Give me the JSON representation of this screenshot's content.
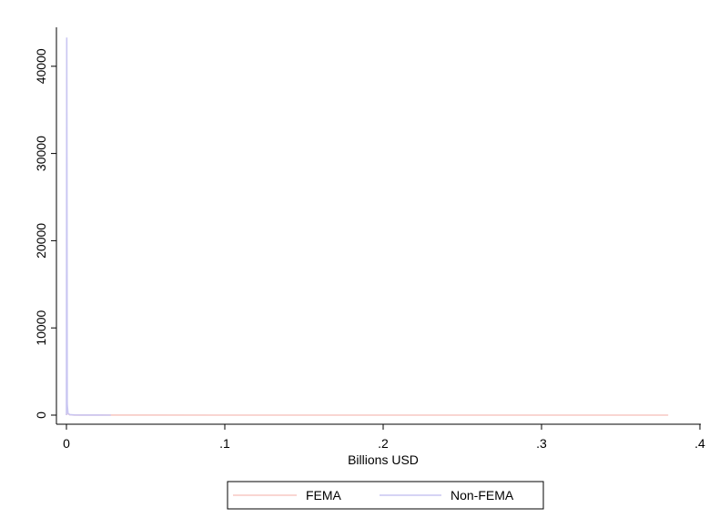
{
  "chart_data": {
    "type": "line",
    "title": "",
    "xlabel": "Billions USD",
    "ylabel": "",
    "xlim": [
      0,
      0.4
    ],
    "ylim": [
      0,
      43500
    ],
    "xticks": [
      0,
      0.1,
      0.2,
      0.3,
      0.4
    ],
    "xtick_labels": [
      "0",
      ".1",
      ".2",
      ".3",
      ".4"
    ],
    "yticks": [
      0,
      10000,
      20000,
      30000,
      40000
    ],
    "ytick_labels": [
      "0",
      "10000",
      "20000",
      "30000",
      "40000"
    ],
    "grid": false,
    "legend_position": "bottom",
    "series": [
      {
        "name": "FEMA",
        "color": "#f7c9c4",
        "x": [
          0,
          0.0005,
          0.001,
          0.002,
          0.005,
          0.01,
          0.05,
          0.1,
          0.2,
          0.3,
          0.38
        ],
        "y": [
          0,
          600,
          150,
          40,
          10,
          5,
          2,
          1,
          1,
          1,
          1
        ]
      },
      {
        "name": "Non-FEMA",
        "color": "#c9c6f2",
        "x": [
          0,
          0.0002,
          0.0005,
          0.001,
          0.002,
          0.005,
          0.01,
          0.02,
          0.028
        ],
        "y": [
          0,
          43300,
          1200,
          200,
          60,
          20,
          8,
          3,
          1
        ]
      }
    ]
  }
}
